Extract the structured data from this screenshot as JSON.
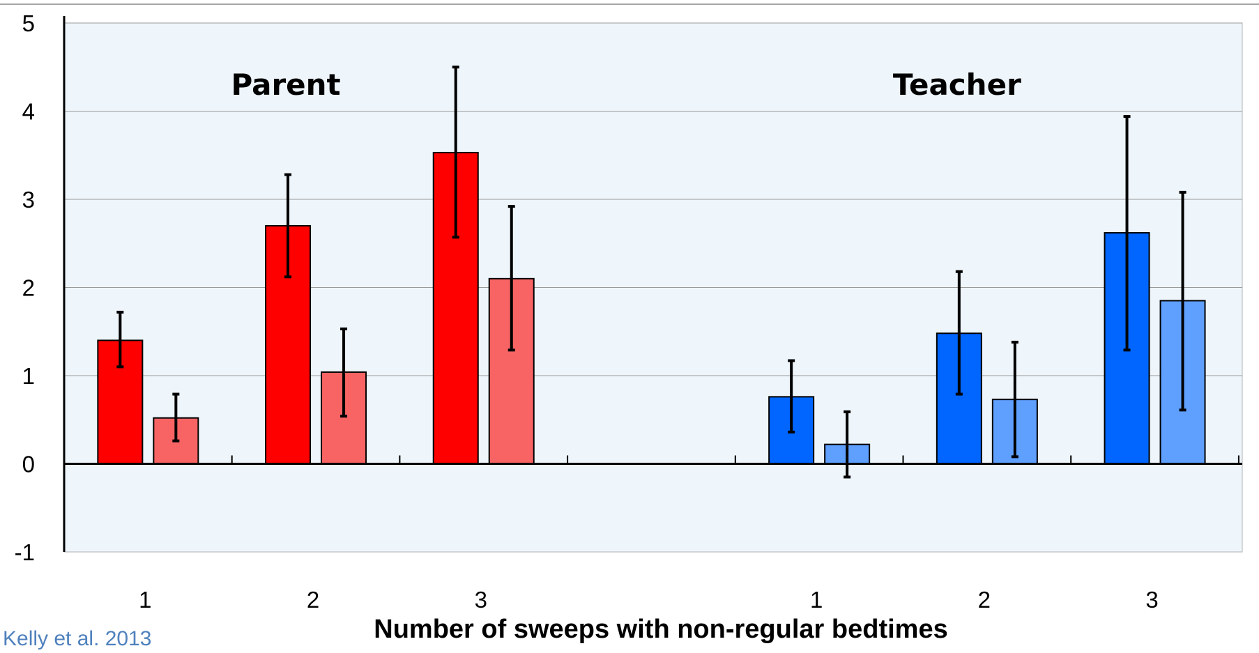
{
  "chart_data": {
    "type": "bar",
    "ylim": [
      -1,
      5
    ],
    "yticks": [
      "5",
      "4",
      "3",
      "2",
      "1",
      "0",
      "-1"
    ],
    "xlabel": "Number of sweeps with non-regular bedtimes",
    "grid": true,
    "groups": [
      {
        "title": "Parent",
        "categories": [
          "1",
          "2",
          "3"
        ],
        "series": [
          {
            "color": "#ff0000",
            "values": [
              1.4,
              2.7,
              3.53
            ],
            "error_low": [
              1.1,
              2.12,
              2.57
            ],
            "error_high": [
              1.72,
              3.28,
              4.5
            ]
          },
          {
            "color": "#f86464",
            "values": [
              0.52,
              1.04,
              2.1
            ],
            "error_low": [
              0.26,
              0.54,
              1.29
            ],
            "error_high": [
              0.79,
              1.53,
              2.92
            ]
          }
        ]
      },
      {
        "title": "Teacher",
        "categories": [
          "1",
          "2",
          "3"
        ],
        "series": [
          {
            "color": "#0066ff",
            "values": [
              0.76,
              1.48,
              2.62
            ],
            "error_low": [
              0.36,
              0.79,
              1.29
            ],
            "error_high": [
              1.17,
              2.18,
              3.94
            ]
          },
          {
            "color": "#5fa0ff",
            "values": [
              0.22,
              0.73,
              1.85
            ],
            "error_low": [
              -0.15,
              0.08,
              0.61
            ],
            "error_high": [
              0.59,
              1.38,
              3.08
            ]
          }
        ]
      }
    ]
  },
  "credit": "Kelly et al. 2013"
}
